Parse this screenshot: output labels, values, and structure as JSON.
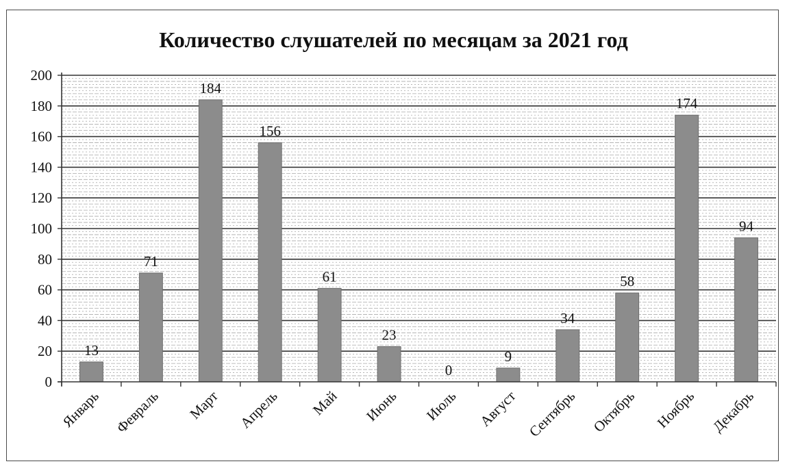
{
  "chart_data": {
    "type": "bar",
    "title": "Количество слушателей по месяцам за 2021 год",
    "xlabel": "",
    "ylabel": "",
    "categories": [
      "Январь",
      "Февраль",
      "Март",
      "Апрель",
      "Май",
      "Июнь",
      "Июль",
      "Август",
      "Сентябрь",
      "Октябрь",
      "Ноябрь",
      "Декабрь"
    ],
    "values": [
      13,
      71,
      184,
      156,
      61,
      23,
      0,
      9,
      34,
      58,
      174,
      94
    ],
    "ylim": [
      0,
      200
    ],
    "yticks": [
      "0",
      "20",
      "40",
      "60",
      "80",
      "100",
      "120",
      "140",
      "160",
      "180",
      "200"
    ],
    "data_labels": [
      "13",
      "71",
      "184",
      "156",
      "61",
      "23",
      "0",
      "9",
      "34",
      "58",
      "174",
      "94"
    ],
    "grid": true,
    "legend": "none",
    "colors": {
      "bar": "#8c8c8c",
      "bar_edge": "#6e6e6e",
      "grid": "#a9a9a9",
      "axis": "#333333"
    }
  }
}
